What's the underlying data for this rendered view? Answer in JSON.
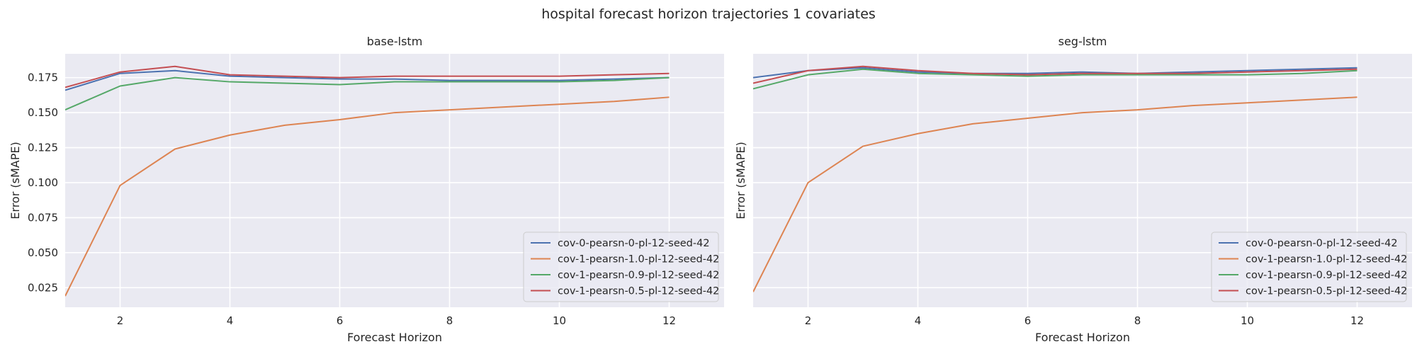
{
  "suptitle": "hospital forecast horizon trajectories 1 covariates",
  "colors": {
    "background": "#eaeaf2",
    "grid": "#ffffff",
    "series": [
      "#4c72b0",
      "#dd8452",
      "#55a868",
      "#c44e52"
    ]
  },
  "chart_data": [
    {
      "type": "line",
      "title": "base-lstm",
      "xlabel": "Forecast Horizon",
      "ylabel": "Error (sMAPE)",
      "xlim": [
        1,
        13
      ],
      "ylim": [
        0.011,
        0.192
      ],
      "xticks": [
        2,
        4,
        6,
        8,
        10,
        12
      ],
      "xtick_labels": [
        "2",
        "4",
        "6",
        "8",
        "10",
        "12"
      ],
      "yticks": [
        0.025,
        0.05,
        0.075,
        0.1,
        0.125,
        0.15,
        0.175
      ],
      "ytick_labels": [
        "0.025",
        "0.050",
        "0.075",
        "0.100",
        "0.125",
        "0.150",
        "0.175"
      ],
      "grid": true,
      "legend_position": "lower-right",
      "x": [
        1,
        2,
        3,
        4,
        5,
        6,
        7,
        8,
        9,
        10,
        11,
        12
      ],
      "series": [
        {
          "name": "cov-0-pearsn-0-pl-12-seed-42",
          "values": [
            0.166,
            0.178,
            0.18,
            0.176,
            0.175,
            0.174,
            0.174,
            0.173,
            0.173,
            0.173,
            0.174,
            0.175
          ]
        },
        {
          "name": "cov-1-pearsn-1.0-pl-12-seed-42",
          "values": [
            0.019,
            0.098,
            0.124,
            0.134,
            0.141,
            0.145,
            0.15,
            0.152,
            0.154,
            0.156,
            0.158,
            0.161
          ]
        },
        {
          "name": "cov-1-pearsn-0.9-pl-12-seed-42",
          "values": [
            0.152,
            0.169,
            0.175,
            0.172,
            0.171,
            0.17,
            0.172,
            0.172,
            0.172,
            0.172,
            0.173,
            0.175
          ]
        },
        {
          "name": "cov-1-pearsn-0.5-pl-12-seed-42",
          "values": [
            0.168,
            0.179,
            0.183,
            0.177,
            0.176,
            0.175,
            0.176,
            0.176,
            0.176,
            0.176,
            0.177,
            0.178
          ]
        }
      ]
    },
    {
      "type": "line",
      "title": "seg-lstm",
      "xlabel": "Forecast Horizon",
      "ylabel": "Error (sMAPE)",
      "xlim": [
        1,
        13
      ],
      "ylim": [
        0.011,
        0.192
      ],
      "xticks": [
        2,
        4,
        6,
        8,
        10,
        12
      ],
      "xtick_labels": [
        "2",
        "4",
        "6",
        "8",
        "10",
        "12"
      ],
      "yticks": [],
      "ytick_labels": [],
      "grid": true,
      "legend_position": "lower-right",
      "x": [
        1,
        2,
        3,
        4,
        5,
        6,
        7,
        8,
        9,
        10,
        11,
        12
      ],
      "series": [
        {
          "name": "cov-0-pearsn-0-pl-12-seed-42",
          "values": [
            0.175,
            0.18,
            0.182,
            0.179,
            0.178,
            0.178,
            0.179,
            0.178,
            0.179,
            0.18,
            0.181,
            0.182
          ]
        },
        {
          "name": "cov-1-pearsn-1.0-pl-12-seed-42",
          "values": [
            0.022,
            0.1,
            0.126,
            0.135,
            0.142,
            0.146,
            0.15,
            0.152,
            0.155,
            0.157,
            0.159,
            0.161
          ]
        },
        {
          "name": "cov-1-pearsn-0.9-pl-12-seed-42",
          "values": [
            0.167,
            0.177,
            0.181,
            0.178,
            0.177,
            0.176,
            0.177,
            0.177,
            0.177,
            0.177,
            0.178,
            0.18
          ]
        },
        {
          "name": "cov-1-pearsn-0.5-pl-12-seed-42",
          "values": [
            0.171,
            0.18,
            0.183,
            0.18,
            0.178,
            0.177,
            0.178,
            0.178,
            0.178,
            0.179,
            0.18,
            0.181
          ]
        }
      ]
    }
  ]
}
